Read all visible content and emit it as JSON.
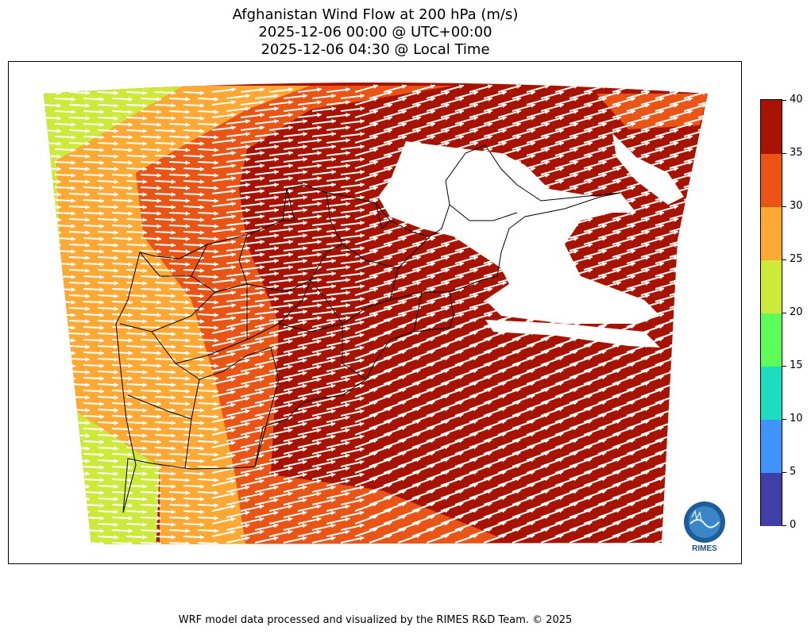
{
  "title": {
    "line1": "Afghanistan Wind Flow at 200 hPa (m/s)",
    "line2": "2025-12-06 00:00 @ UTC+00:00",
    "line3": "2025-12-06 04:30 @ Local Time"
  },
  "colorbar": {
    "ticks": [
      "0",
      "5",
      "10",
      "15",
      "20",
      "25",
      "30",
      "35",
      "40"
    ],
    "levels": [
      0,
      5,
      10,
      15,
      20,
      25,
      30,
      35,
      40
    ],
    "colors": [
      "#3f3fa6",
      "#3f93ff",
      "#1edcc0",
      "#5ffd58",
      "#cde93a",
      "#ffa934",
      "#ea5516",
      "#a81300"
    ]
  },
  "map": {
    "background": "#ffffff",
    "boundary_color": "#000000",
    "arrow_color": "#ffffff",
    "wind_direction": "west-to-east"
  },
  "logo": {
    "text": "RIMES"
  },
  "footer": "WRF model data processed and visualized by the RIMES R&D Team. © 2025"
}
